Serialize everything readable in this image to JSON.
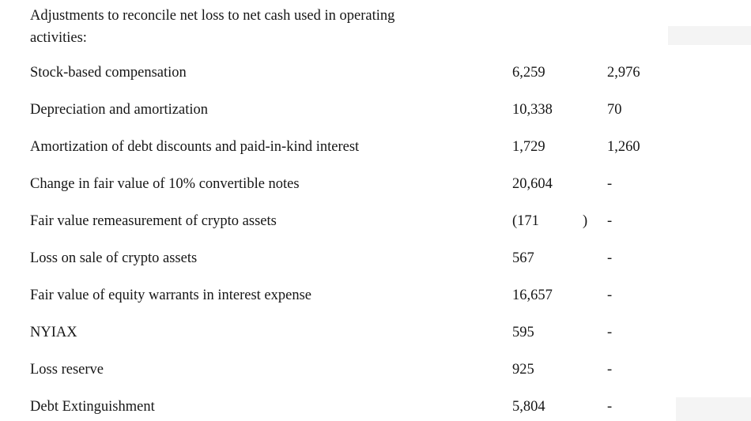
{
  "page": {
    "background_color": "#ffffff",
    "text_color": "#161616"
  },
  "section_header": {
    "line1": "Adjustments to reconcile net loss to net cash used in operating",
    "line2": "activities:"
  },
  "table": {
    "rows": [
      {
        "label": "Stock-based compensation",
        "value1": "6,259",
        "paren": "",
        "value2": "2,976"
      },
      {
        "label": "Depreciation and amortization",
        "value1": "10,338",
        "paren": "",
        "value2": "70"
      },
      {
        "label": "Amortization of debt discounts and paid-in-kind interest",
        "value1": "1,729",
        "paren": "",
        "value2": "1,260"
      },
      {
        "label": "Change in fair value of 10% convertible notes",
        "value1": "20,604",
        "paren": "",
        "value2": "-"
      },
      {
        "label": "Fair value remeasurement of crypto assets",
        "value1": "(171",
        "paren": ")",
        "value2": "-"
      },
      {
        "label": "Loss on sale of crypto assets",
        "value1": "567",
        "paren": "",
        "value2": "-"
      },
      {
        "label": "Fair value of equity warrants in interest expense",
        "value1": "16,657",
        "paren": "",
        "value2": "-"
      },
      {
        "label": "NYIAX",
        "value1": "595",
        "paren": "",
        "value2": "-"
      },
      {
        "label": "Loss reserve",
        "value1": "925",
        "paren": "",
        "value2": "-"
      },
      {
        "label": "Debt Extinguishment",
        "value1": "5,804",
        "paren": "",
        "value2": "-"
      }
    ]
  }
}
